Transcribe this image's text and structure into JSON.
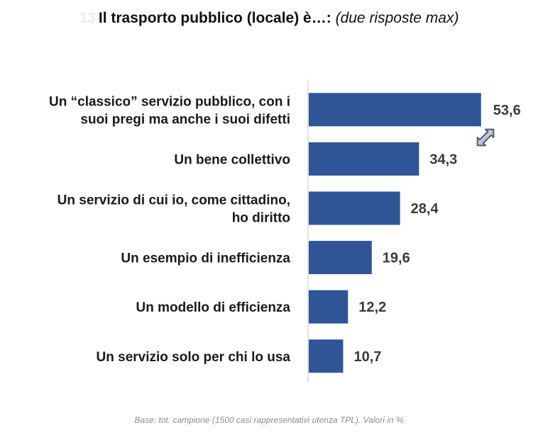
{
  "title": {
    "number": "13",
    "main": "Il trasporto pubblico (locale) è…:",
    "note": "(due risposte max)"
  },
  "footnote": "Base: tot. campione (1500 casi rappresentativi utenza TPL). Valori in %",
  "chart_data": {
    "type": "bar",
    "orientation": "horizontal",
    "title": "Il trasporto pubblico (locale) è…: (due risposte max)",
    "xlabel": "",
    "ylabel": "",
    "unit": "%",
    "xlim": [
      0,
      60
    ],
    "grid": false,
    "legend": "none",
    "bar_color": "#2f5597",
    "categories": [
      [
        "Un “classico” servizio pubblico, con i",
        "suoi pregi ma anche i suoi difetti"
      ],
      [
        "Un bene collettivo"
      ],
      [
        "Un servizio di cui io, come cittadino,",
        "ho diritto"
      ],
      [
        "Un esempio di inefficienza"
      ],
      [
        "Un modello di efficienza"
      ],
      [
        "Un servizio solo per chi lo usa"
      ]
    ],
    "values": [
      53.6,
      34.3,
      28.4,
      19.6,
      12.2,
      10.7
    ],
    "value_labels": [
      "53,6",
      "34,3",
      "28,4",
      "19,6",
      "12,2",
      "10,7"
    ],
    "annotations": [
      {
        "type": "double-arrow-icon",
        "between": [
          "53,6",
          "34,3"
        ]
      }
    ]
  }
}
